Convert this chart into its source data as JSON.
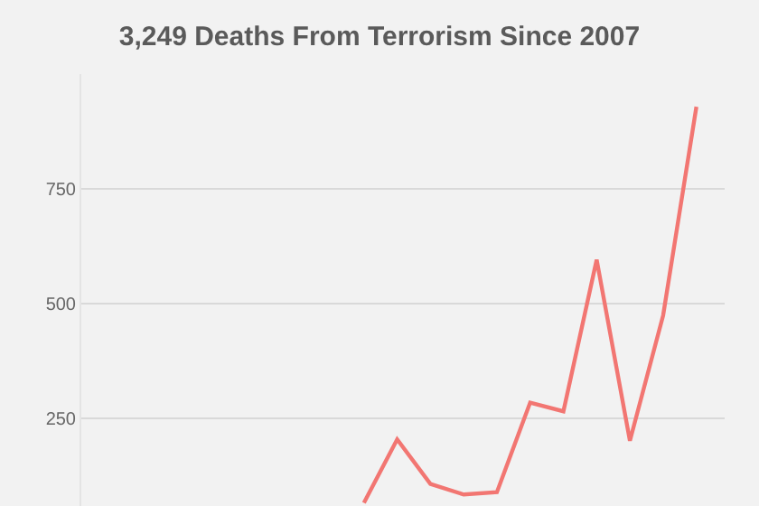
{
  "chart_data": {
    "type": "line",
    "title": "3,249 Deaths From Terrorism Since 2007",
    "categories": [
      null,
      null,
      null,
      null,
      null,
      null,
      null,
      null,
      null,
      null,
      null,
      null,
      null,
      null,
      null,
      null,
      null,
      null,
      null
    ],
    "series": [
      {
        "color": "#f27672",
        "values": [
          null,
          null,
          null,
          null,
          null,
          null,
          null,
          null,
          67,
          205,
          108,
          85,
          90,
          285,
          266,
          596,
          202,
          475,
          929
        ]
      }
    ],
    "ylim": [
      60,
      1000
    ],
    "yticks": [
      250,
      500,
      750
    ],
    "grid": "y",
    "marker": "none",
    "line_style": "solid"
  }
}
